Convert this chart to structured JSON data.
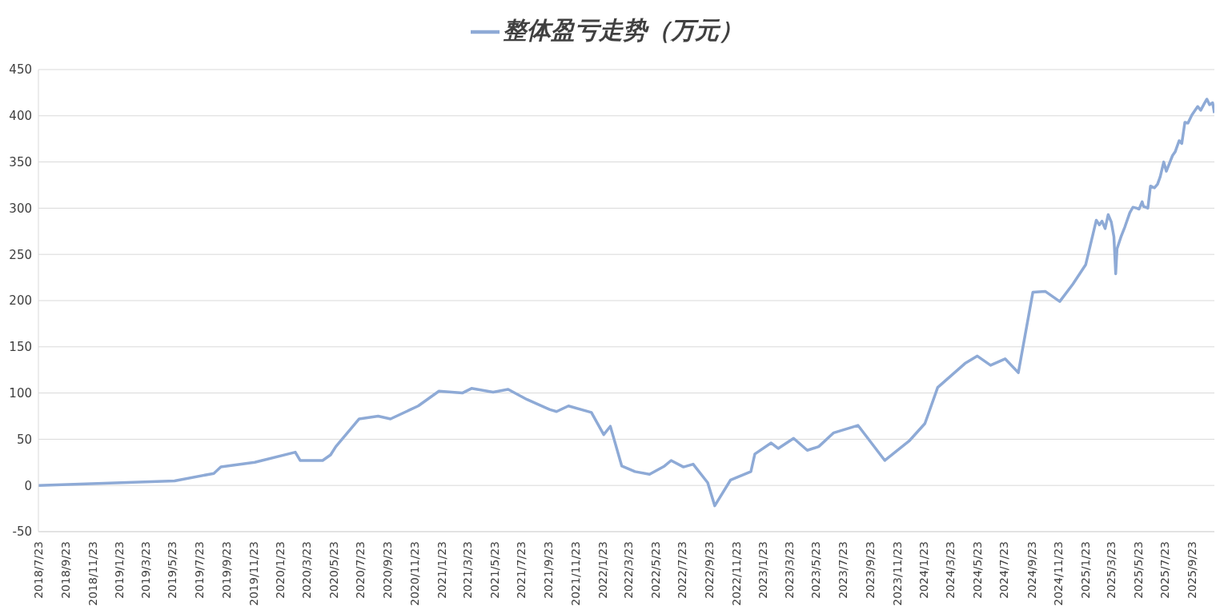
{
  "chart_data": {
    "type": "line",
    "legend": "top",
    "grid": "y",
    "marker": "none",
    "line_style": "solid",
    "x": [
      "2018-07-23",
      "2019-05-28",
      "2019-08-25",
      "2019-09-10",
      "2019-11-26",
      "2020-02-26",
      "2020-03-08",
      "2020-04-28",
      "2020-05-16",
      "2020-05-28",
      "2020-07-20",
      "2020-09-01",
      "2020-09-29",
      "2020-12-01",
      "2021-01-17",
      "2021-03-11",
      "2021-04-01",
      "2021-05-20",
      "2021-06-23",
      "2021-08-05",
      "2021-09-26",
      "2021-10-11",
      "2021-11-07",
      "2021-12-29",
      "2022-01-26",
      "2022-02-10",
      "2022-03-08",
      "2022-04-07",
      "2022-05-10",
      "2022-06-13",
      "2022-06-28",
      "2022-07-26",
      "2022-08-17",
      "2022-09-19",
      "2022-10-05",
      "2022-11-10",
      "2022-12-26",
      "2023-01-04",
      "2023-02-10",
      "2023-02-26",
      "2023-04-02",
      "2023-05-03",
      "2023-05-29",
      "2023-07-02",
      "2023-08-26",
      "2023-10-26",
      "2023-12-20",
      "2024-01-25",
      "2024-02-23",
      "2024-04-25",
      "2024-05-23",
      "2024-06-22",
      "2024-07-25",
      "2024-08-24",
      "2024-09-26",
      "2024-10-24",
      "2024-11-26",
      "2024-12-26",
      "2025-01-24",
      "2025-02-17",
      "2025-02-24",
      "2025-03-02",
      "2025-03-09",
      "2025-03-16",
      "2025-03-23",
      "2025-03-29",
      "2025-04-02",
      "2025-04-05",
      "2025-04-14",
      "2025-04-23",
      "2025-05-04",
      "2025-05-11",
      "2025-05-20",
      "2025-05-25",
      "2025-06-01",
      "2025-06-04",
      "2025-06-14",
      "2025-06-20",
      "2025-06-29",
      "2025-07-06",
      "2025-07-12",
      "2025-07-20",
      "2025-07-26",
      "2025-08-09",
      "2025-08-15",
      "2025-08-24",
      "2025-08-30",
      "2025-09-06",
      "2025-09-13",
      "2025-09-22",
      "2025-10-05",
      "2025-10-12",
      "2025-10-21",
      "2025-10-26",
      "2025-11-01",
      "2025-11-08",
      "2025-11-12"
    ],
    "series": [
      {
        "name": "整体盈亏走势（万元）",
        "color": "#8eaad6",
        "values": [
          0,
          5,
          13,
          20,
          25,
          36,
          27,
          27,
          33,
          42,
          72,
          75,
          72,
          86,
          102,
          100,
          105,
          101,
          104,
          93,
          82,
          80,
          86,
          79,
          55,
          64,
          21,
          15,
          12,
          21,
          27,
          20,
          23,
          3,
          -22,
          6,
          15,
          34,
          46,
          40,
          51,
          38,
          42,
          57,
          65,
          27,
          48,
          67,
          106,
          132,
          140,
          130,
          137,
          122,
          209,
          210,
          199,
          218,
          239,
          287,
          282,
          286,
          278,
          293,
          285,
          269,
          229,
          256,
          269,
          280,
          295,
          301,
          300,
          299,
          307,
          302,
          300,
          324,
          322,
          326,
          334,
          350,
          340,
          357,
          361,
          373,
          370,
          393,
          392,
          401,
          410,
          406,
          414,
          418,
          412,
          414,
          403
        ]
      }
    ],
    "xlim": [
      "2018-07-23",
      "2025-11-12"
    ],
    "xticks": [
      {
        "value": "2018-07-23",
        "label": "2018/7/23"
      },
      {
        "value": "2018-09-23",
        "label": "2018/9/23"
      },
      {
        "value": "2018-11-23",
        "label": "2018/11/23"
      },
      {
        "value": "2019-01-23",
        "label": "2019/1/23"
      },
      {
        "value": "2019-03-23",
        "label": "2019/3/23"
      },
      {
        "value": "2019-05-23",
        "label": "2019/5/23"
      },
      {
        "value": "2019-07-23",
        "label": "2019/7/23"
      },
      {
        "value": "2019-09-23",
        "label": "2019/9/23"
      },
      {
        "value": "2019-11-23",
        "label": "2019/11/23"
      },
      {
        "value": "2020-01-23",
        "label": "2020/1/23"
      },
      {
        "value": "2020-03-23",
        "label": "2020/3/23"
      },
      {
        "value": "2020-05-23",
        "label": "2020/5/23"
      },
      {
        "value": "2020-07-23",
        "label": "2020/7/23"
      },
      {
        "value": "2020-09-23",
        "label": "2020/9/23"
      },
      {
        "value": "2020-11-23",
        "label": "2020/11/23"
      },
      {
        "value": "2021-01-23",
        "label": "2021/1/23"
      },
      {
        "value": "2021-03-23",
        "label": "2021/3/23"
      },
      {
        "value": "2021-05-23",
        "label": "2021/5/23"
      },
      {
        "value": "2021-07-23",
        "label": "2021/7/23"
      },
      {
        "value": "2021-09-23",
        "label": "2021/9/23"
      },
      {
        "value": "2021-11-23",
        "label": "2021/11/23"
      },
      {
        "value": "2022-01-23",
        "label": "2022/1/23"
      },
      {
        "value": "2022-03-23",
        "label": "2022/3/23"
      },
      {
        "value": "2022-05-23",
        "label": "2022/5/23"
      },
      {
        "value": "2022-07-23",
        "label": "2022/7/23"
      },
      {
        "value": "2022-09-23",
        "label": "2022/9/23"
      },
      {
        "value": "2022-11-23",
        "label": "2022/11/23"
      },
      {
        "value": "2023-01-23",
        "label": "2023/1/23"
      },
      {
        "value": "2023-03-23",
        "label": "2023/3/23"
      },
      {
        "value": "2023-05-23",
        "label": "2023/5/23"
      },
      {
        "value": "2023-07-23",
        "label": "2023/7/23"
      },
      {
        "value": "2023-09-23",
        "label": "2023/9/23"
      },
      {
        "value": "2023-11-23",
        "label": "2023/11/23"
      },
      {
        "value": "2024-01-23",
        "label": "2024/1/23"
      },
      {
        "value": "2024-03-23",
        "label": "2024/3/23"
      },
      {
        "value": "2024-05-23",
        "label": "2024/5/23"
      },
      {
        "value": "2024-07-23",
        "label": "2024/7/23"
      },
      {
        "value": "2024-09-23",
        "label": "2024/9/23"
      },
      {
        "value": "2024-11-23",
        "label": "2024/11/23"
      },
      {
        "value": "2025-01-23",
        "label": "2025/1/23"
      },
      {
        "value": "2025-03-23",
        "label": "2025/3/23"
      },
      {
        "value": "2025-05-23",
        "label": "2025/5/23"
      },
      {
        "value": "2025-07-23",
        "label": "2025/7/23"
      },
      {
        "value": "2025-09-23",
        "label": "2025/9/23"
      }
    ],
    "ylim": [
      -50,
      450
    ],
    "yticks": [
      -50,
      0,
      50,
      100,
      150,
      200,
      250,
      300,
      350,
      400,
      450
    ]
  }
}
